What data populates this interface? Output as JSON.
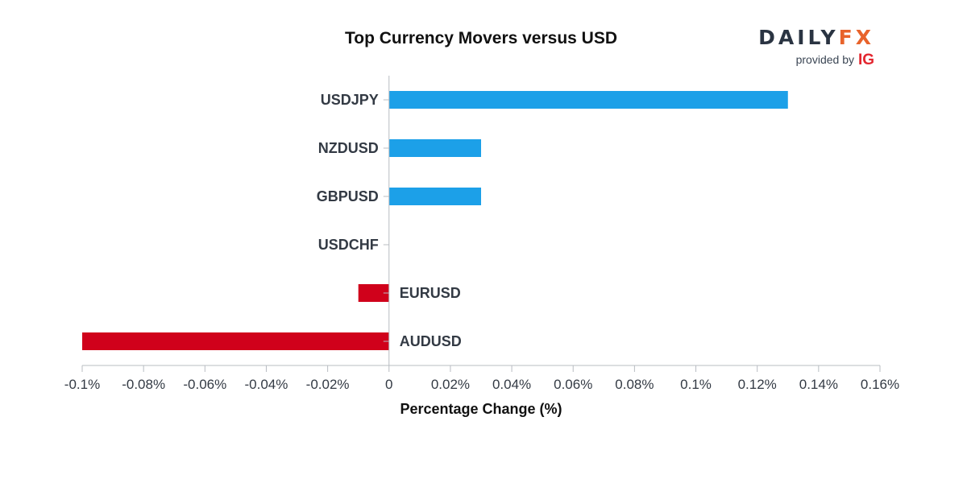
{
  "chart_data": {
    "type": "bar",
    "orientation": "horizontal",
    "title": "Top Currency Movers versus USD",
    "xlabel": "Percentage Change (%)",
    "ylabel": "",
    "categories": [
      "USDJPY",
      "NZDUSD",
      "GBPUSD",
      "USDCHF",
      "EURUSD",
      "AUDUSD"
    ],
    "values": [
      0.13,
      0.03,
      0.03,
      0.0,
      -0.01,
      -0.1
    ],
    "xlim": [
      -0.1,
      0.16
    ],
    "x_ticks": [
      -0.1,
      -0.08,
      -0.06,
      -0.04,
      -0.02,
      0,
      0.02,
      0.04,
      0.06,
      0.08,
      0.1,
      0.12,
      0.14,
      0.16
    ],
    "x_tick_labels": [
      "-0.1%",
      "-0.08%",
      "-0.06%",
      "-0.04%",
      "-0.02%",
      "0",
      "0.02%",
      "0.04%",
      "0.06%",
      "0.08%",
      "0.1%",
      "0.12%",
      "0.14%",
      "0.16%"
    ],
    "grid": false,
    "legend": "none",
    "colors": {
      "positive": "#1ca0e8",
      "negative": "#d0011b",
      "axis": "#b8bcc2",
      "label": "#333a44"
    }
  },
  "branding": {
    "logo_daily": "DAILY",
    "logo_fx": "FX",
    "provided_by": "provided by",
    "ig": "IG",
    "colors": {
      "daily": "#2a3442",
      "fx": "#e8632b",
      "ig": "#e3262f"
    }
  }
}
